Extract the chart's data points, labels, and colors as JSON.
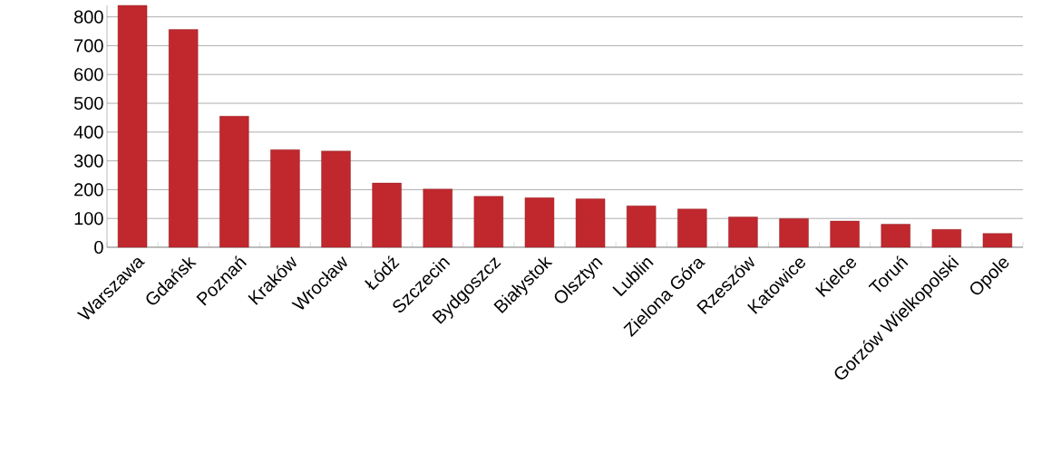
{
  "chart_data": {
    "type": "bar",
    "categories": [
      "Warszawa",
      "Gdańsk",
      "Poznań",
      "Kraków",
      "Wrocław",
      "Łódź",
      "Szczecin",
      "Bydgoszcz",
      "Białystok",
      "Olsztyn",
      "Lublin",
      "Zielona Góra",
      "Rzeszów",
      "Katowice",
      "Kielce",
      "Toruń",
      "Gorzów Wielkopolski",
      "Opole"
    ],
    "values": [
      840,
      756,
      455,
      339,
      334,
      223,
      202,
      177,
      172,
      168,
      144,
      133,
      105,
      100,
      91,
      80,
      62,
      48
    ],
    "color": "#c0282d",
    "ylim": [
      0,
      840
    ],
    "yticks": [
      0,
      100,
      200,
      300,
      400,
      500,
      600,
      700,
      800
    ],
    "grid": "y"
  }
}
